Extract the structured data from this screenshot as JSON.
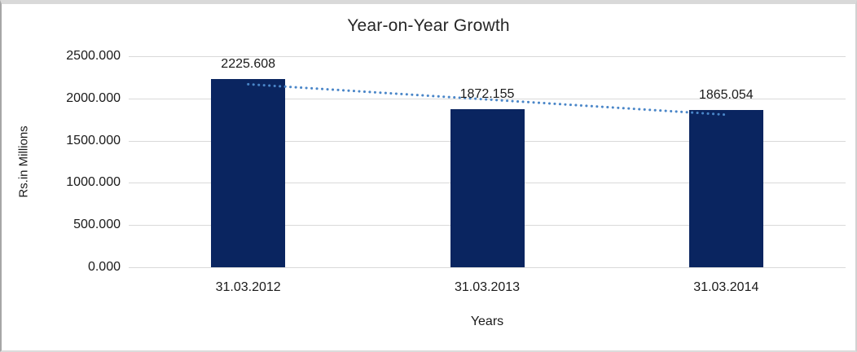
{
  "chart_data": {
    "type": "bar",
    "title": "Year-on-Year Growth",
    "xlabel": "Years",
    "ylabel": "Rs.in Millions",
    "categories": [
      "31.03.2012",
      "31.03.2013",
      "31.03.2014"
    ],
    "values": [
      2225.608,
      1872.155,
      1865.054
    ],
    "data_labels": [
      "2225.608",
      "1872.155",
      "1865.054"
    ],
    "y_ticks": [
      "2500.000",
      "2000.000",
      "1500.000",
      "1000.000",
      "500.000",
      "0.000"
    ],
    "ylim": [
      0,
      2500
    ],
    "grid": true,
    "legend": "none",
    "bar_color": "#0A2560",
    "gridline_color": "#D9D9D9",
    "trendline": {
      "type": "linear",
      "style": "dotted",
      "color": "#4A86C8",
      "start_value": 2168,
      "end_value": 1807
    }
  }
}
